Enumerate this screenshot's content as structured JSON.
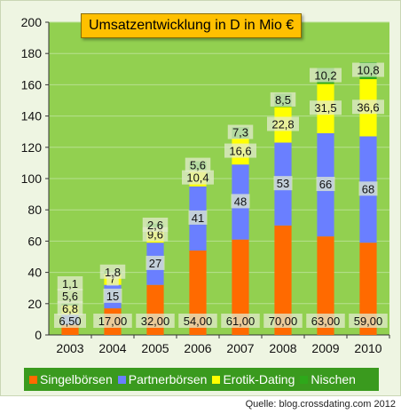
{
  "chart_data": {
    "type": "bar",
    "stacked": true,
    "title": "Umsatzentwicklung in D in Mio €",
    "categories": [
      "2003",
      "2004",
      "2005",
      "2006",
      "2007",
      "2008",
      "2009",
      "2010"
    ],
    "series": [
      {
        "name": "Singelbörsen",
        "color": "#ff6a00",
        "values": [
          6.5,
          17,
          32,
          54,
          61,
          70,
          63,
          59
        ],
        "labels": [
          "6,50",
          "17,00",
          "32,00",
          "54,00",
          "61,00",
          "70,00",
          "63,00",
          "59,00"
        ]
      },
      {
        "name": "Partnerbörsen",
        "color": "#6a7fff",
        "values": [
          6.8,
          15,
          27,
          41,
          48,
          53,
          66,
          68
        ],
        "labels": [
          "6,8",
          "15",
          "27",
          "41",
          "48",
          "53",
          "66",
          "68"
        ]
      },
      {
        "name": "Erotik-Dating",
        "color": "#ffff00",
        "values": [
          5.6,
          7,
          9.6,
          10.4,
          16.6,
          22.8,
          31.5,
          36.6
        ],
        "labels": [
          "5,6",
          "7",
          "9,6",
          "10,4",
          "16,6",
          "22,8",
          "31,5",
          "36,6"
        ]
      },
      {
        "name": "Nischen",
        "color": "#2ea81a",
        "values": [
          1.1,
          1.8,
          2.6,
          5.6,
          7.3,
          8.5,
          10.2,
          10.8
        ],
        "labels": [
          "1,1",
          "1,8",
          "2,6",
          "5,6",
          "7,3",
          "8,5",
          "10,2",
          "10,8"
        ]
      }
    ],
    "ylim": [
      0,
      200
    ],
    "yticks": [
      0,
      20,
      40,
      60,
      80,
      100,
      120,
      140,
      160,
      180,
      200
    ],
    "grid": true,
    "legend_position": "bottom",
    "colors": {
      "plot_background": "#92d050",
      "outer_background": "#eef5e2",
      "title_box": "#ffc000",
      "legend_background": "#3a9a1e"
    }
  },
  "source": "Quelle: blog.crossdating.com  2012"
}
